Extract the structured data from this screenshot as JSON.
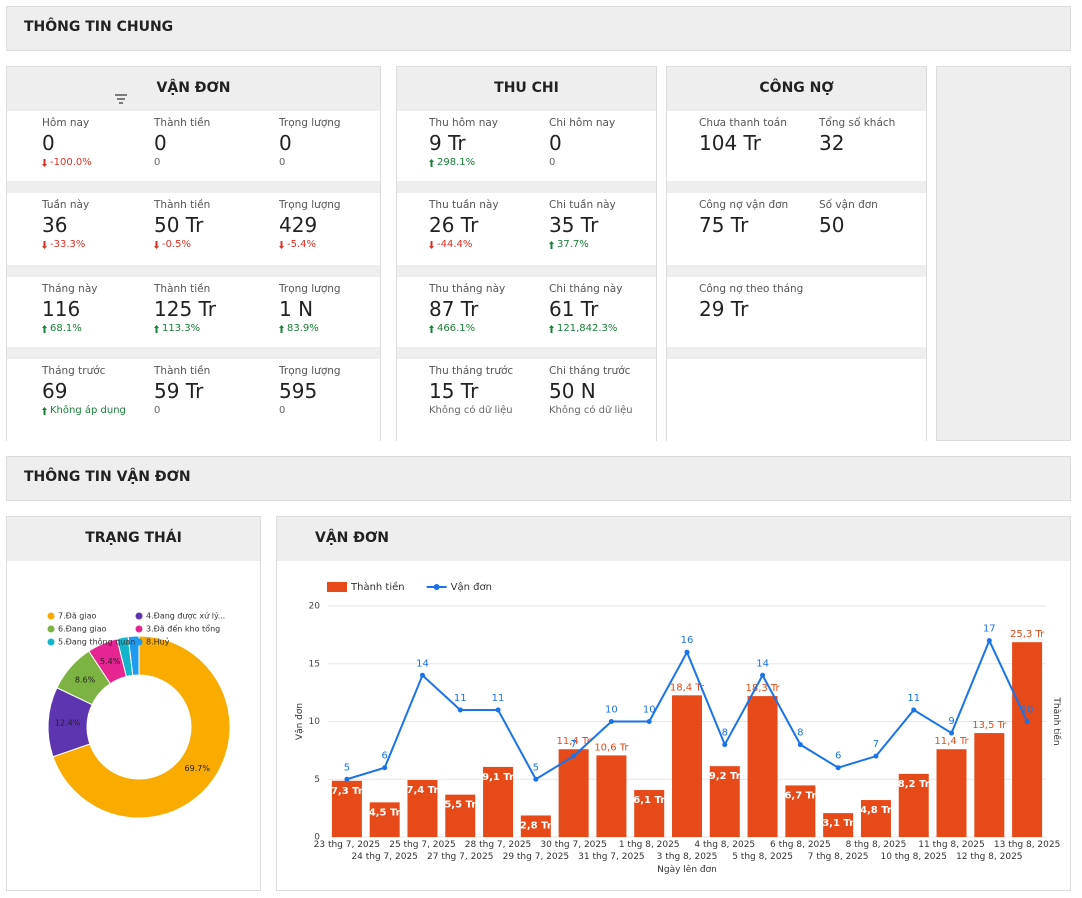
{
  "sections": {
    "general": "THÔNG TIN CHUNG",
    "shipping": "THÔNG TIN VẬN ĐƠN"
  },
  "cards": [
    {
      "title": "VẬN ĐƠN",
      "blocks": [
        [
          {
            "label": "Hôm nay",
            "value": "0",
            "change": "-100.0%",
            "trend": "down"
          },
          {
            "label": "Thành tiền",
            "value": "0",
            "change": "0"
          },
          {
            "label": "Trọng lượng",
            "value": "0",
            "change": "0"
          }
        ],
        [
          {
            "label": "Tuần này",
            "value": "36",
            "change": "-33.3%",
            "trend": "down"
          },
          {
            "label": "Thành tiền",
            "value": "50 Tr",
            "change": "-0.5%",
            "trend": "down"
          },
          {
            "label": "Trọng lượng",
            "value": "429",
            "change": "-5.4%",
            "trend": "down"
          }
        ],
        [
          {
            "label": "Tháng này",
            "value": "116",
            "change": "68.1%",
            "trend": "up"
          },
          {
            "label": "Thành tiền",
            "value": "125 Tr",
            "change": "113.3%",
            "trend": "up"
          },
          {
            "label": "Trọng lượng",
            "value": "1 N",
            "change": "83.9%",
            "trend": "up"
          }
        ],
        [
          {
            "label": "Tháng trước",
            "value": "69",
            "change": "Không áp dụng",
            "trend": "up"
          },
          {
            "label": "Thành tiền",
            "value": "59 Tr",
            "change": "0"
          },
          {
            "label": "Trọng lượng",
            "value": "595",
            "change": "0"
          }
        ]
      ]
    },
    {
      "title": "THU CHI",
      "blocks": [
        [
          {
            "label": "Thu hôm nay",
            "value": "9 Tr",
            "change": "298.1%",
            "trend": "up"
          },
          {
            "label": "Chi hôm nay",
            "value": "0",
            "change": "0"
          }
        ],
        [
          {
            "label": "Thu tuần này",
            "value": "26 Tr",
            "change": "-44.4%",
            "trend": "down"
          },
          {
            "label": "Chi tuần này",
            "value": "35 Tr",
            "change": "37.7%",
            "trend": "up"
          }
        ],
        [
          {
            "label": "Thu tháng này",
            "value": "87 Tr",
            "change": "466.1%",
            "trend": "up"
          },
          {
            "label": "Chi tháng này",
            "value": "61 Tr",
            "change": "121,842.3%",
            "trend": "up"
          }
        ],
        [
          {
            "label": "Thu tháng trước",
            "value": "15 Tr",
            "change": "Không có dữ liệu"
          },
          {
            "label": "Chi tháng trước",
            "value": "50 N",
            "change": "Không có dữ liệu"
          }
        ]
      ]
    },
    {
      "title": "CÔNG NỢ",
      "blocks": [
        [
          {
            "label": "Chưa thanh toán",
            "value": "104 Tr"
          },
          {
            "label": "Tổng số khách",
            "value": "32"
          }
        ],
        [
          {
            "label": "Công nợ vận đơn",
            "value": "75 Tr"
          },
          {
            "label": "Số vận đơn",
            "value": "50"
          }
        ],
        [
          {
            "label": "Công nợ theo tháng",
            "value": "29 Tr"
          }
        ],
        []
      ]
    }
  ],
  "chart_data": [
    {
      "type": "pie",
      "title": "TRẠNG THÁI",
      "donut": true,
      "categories": [
        "7.Đã giao",
        "4.Đang được xử lý...",
        "6.Đang giao",
        "3.Đã đến kho tổng",
        "5.Đang thông quan",
        "8.Huỷ"
      ],
      "values": [
        69.7,
        12.4,
        8.6,
        5.4,
        2.0,
        1.9
      ],
      "value_labels": [
        "69.7%",
        "12.4%",
        "8.6%",
        "5.4%",
        null,
        null
      ],
      "colors": [
        "#f9ab00",
        "#5e35b1",
        "#7cb342",
        "#e52592",
        "#12b5cb",
        "#1e9bf0"
      ]
    },
    {
      "type": "combo",
      "title": "VẬN ĐƠN",
      "x_label": "Ngày lên đơn",
      "y_label": "Vận đơn",
      "y2_label": "Thành tiền",
      "categories": [
        "23 thg 7, 2025",
        "24 thg 7, 2025",
        "25 thg 7, 2025",
        "27 thg 7, 2025",
        "28 thg 7, 2025",
        "29 thg 7, 2025",
        "30 thg 7, 2025",
        "31 thg 7, 2025",
        "1 thg 8, 2025",
        "3 thg 8, 2025",
        "4 thg 8, 2025",
        "5 thg 8, 2025",
        "6 thg 8, 2025",
        "7 thg 8, 2025",
        "8 thg 8, 2025",
        "10 thg 8, 2025",
        "11 thg 8, 2025",
        "12 thg 8, 2025",
        "13 thg 8, 2025"
      ],
      "series": [
        {
          "name": "Thành tiền",
          "type": "bar",
          "axis": "y2",
          "color": "#e64a19",
          "values": [
            7.3,
            4.5,
            7.4,
            5.5,
            9.1,
            2.8,
            11.4,
            10.6,
            6.1,
            18.4,
            9.2,
            18.3,
            6.7,
            3.1,
            4.8,
            8.2,
            11.4,
            13.5,
            25.3
          ],
          "value_labels": [
            "7,3 Tr",
            "4,5 Tr",
            "7,4 Tr",
            "5,5 Tr",
            "9,1 Tr",
            "2,8 Tr",
            "11,4 Tr",
            "10,6 Tr",
            "6,1 Tr",
            "18,4 Tr",
            "9,2 Tr",
            "18,3 Tr",
            "6,7 Tr",
            "3,1 Tr",
            "4,8 Tr",
            "8,2 Tr",
            "11,4 Tr",
            "13,5 Tr",
            "25,3 Tr"
          ]
        },
        {
          "name": "Vận đơn",
          "type": "line",
          "color": "#1a73e8",
          "values": [
            5,
            6,
            14,
            11,
            11,
            5,
            7,
            10,
            10,
            16,
            8,
            14,
            8,
            6,
            7,
            11,
            9,
            17,
            10
          ]
        }
      ],
      "ylim": [
        0,
        20
      ],
      "yticks": [
        0,
        5,
        10,
        15,
        20
      ],
      "y2lim": [
        0,
        30
      ],
      "grid": true
    }
  ]
}
